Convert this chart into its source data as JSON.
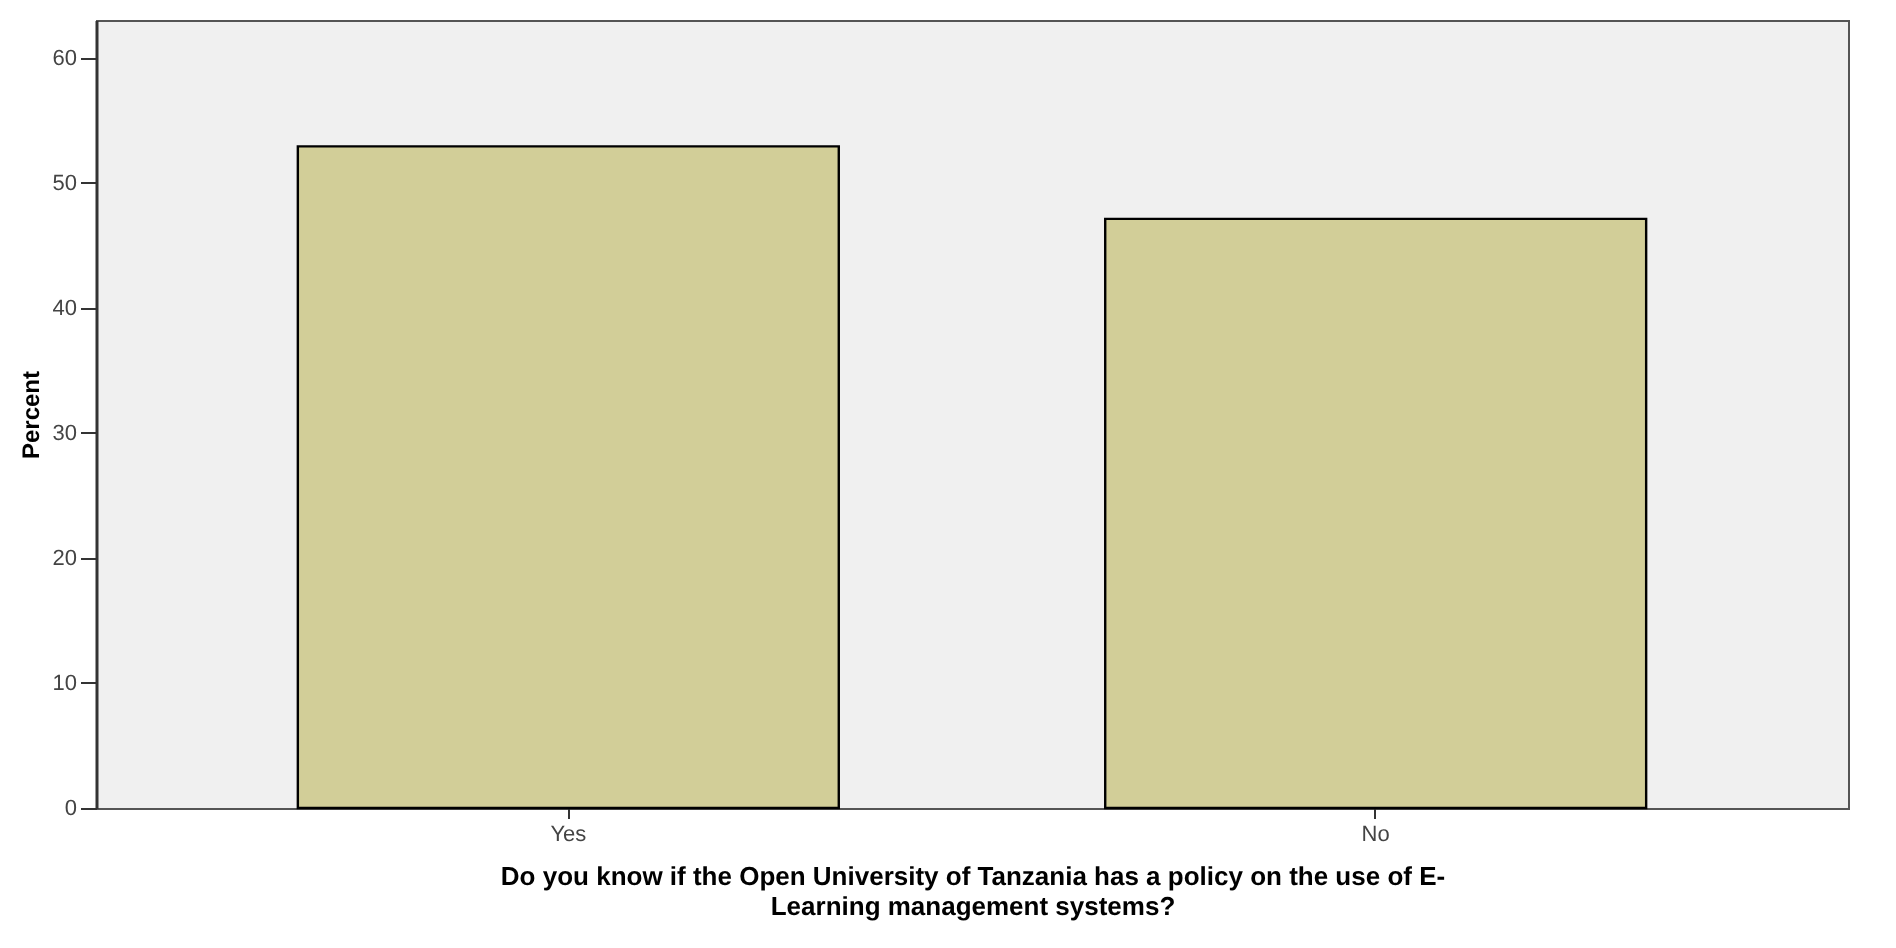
{
  "chart_data": {
    "type": "bar",
    "xlabel": "Do you know if the Open University of Tanzania has a policy on the use of E-Learning management systems?",
    "ylabel": "Percent",
    "categories": [
      "Yes",
      "No"
    ],
    "values": [
      52.9,
      47.1
    ],
    "color": "#d2ce98",
    "ylim": [
      0,
      63
    ],
    "yticks": [
      0,
      10,
      20,
      30,
      40,
      50,
      60
    ],
    "grid": false
  }
}
